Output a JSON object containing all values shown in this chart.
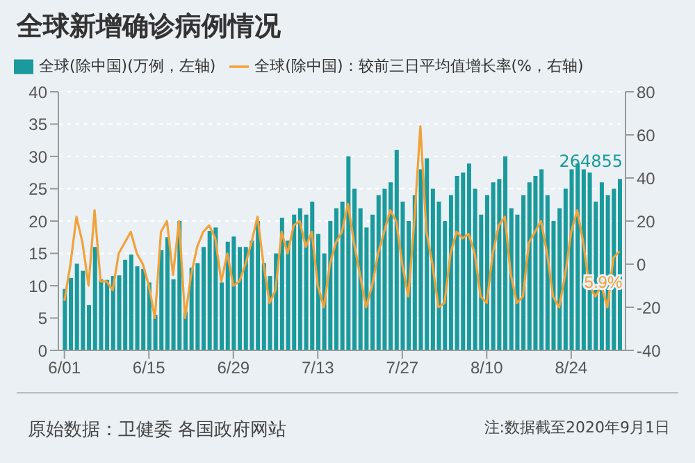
{
  "chart_data": {
    "type": "bar",
    "title": "全球新增确诊病例情况",
    "x": [
      "--06-01",
      "--06-02",
      "--06-03",
      "--06-04",
      "--06-05",
      "--06-06",
      "--06-07",
      "--06-08",
      "--06-09",
      "--06-10",
      "--06-11",
      "--06-12",
      "--06-13",
      "--06-14",
      "--06-15",
      "--06-16",
      "--06-17",
      "--06-18",
      "--06-19",
      "--06-20",
      "--06-21",
      "--06-22",
      "--06-23",
      "--06-24",
      "--06-25",
      "--06-26",
      "--06-27",
      "--06-28",
      "--06-29",
      "--06-30",
      "--07-01",
      "--07-02",
      "--07-03",
      "--07-04",
      "--07-05",
      "--07-06",
      "--07-07",
      "--07-08",
      "--07-09",
      "--07-10",
      "--07-11",
      "--07-12",
      "--07-13",
      "--07-14",
      "--07-15",
      "--07-16",
      "--07-17",
      "--07-18",
      "--07-19",
      "--07-20",
      "--07-21",
      "--07-22",
      "--07-23",
      "--07-24",
      "--07-25",
      "--07-26",
      "--07-27",
      "--07-28",
      "--07-29",
      "--07-30",
      "--07-31",
      "--08-01",
      "--08-02",
      "--08-03",
      "--08-04",
      "--08-05",
      "--08-06",
      "--08-07",
      "--08-08",
      "--08-09",
      "--08-10",
      "--08-11",
      "--08-12",
      "--08-13",
      "--08-14",
      "--08-15",
      "--08-16",
      "--08-17",
      "--08-18",
      "--08-19",
      "--08-20",
      "--08-21",
      "--08-22",
      "--08-23",
      "--08-24",
      "--08-25",
      "--08-26",
      "--08-27",
      "--08-28",
      "--08-29",
      "--08-30",
      "--08-31",
      "--09-01"
    ],
    "series": [
      {
        "name": "全球(除中国)(万例，左轴)",
        "color": "#1a9a9c",
        "values": [
          9.5,
          11.2,
          13.4,
          12.3,
          7,
          16,
          11,
          10.9,
          11.5,
          11.6,
          14,
          14.8,
          13,
          12.6,
          10.5,
          5.5,
          15.5,
          17.5,
          11,
          20,
          6,
          12.8,
          13.5,
          16,
          18.5,
          19,
          10.5,
          16.8,
          17.6,
          16,
          16,
          17,
          20,
          13.5,
          11.5,
          15,
          20.5,
          17,
          21,
          22,
          21,
          23,
          18,
          15,
          20,
          22,
          23,
          30,
          25,
          22,
          19,
          21,
          24,
          25,
          26,
          31,
          23,
          20,
          24,
          28,
          29.7,
          25,
          23,
          20,
          24,
          27,
          27.5,
          28.9,
          25,
          21,
          24,
          26,
          26.5,
          30,
          22,
          21,
          24,
          26,
          27,
          28,
          24,
          20,
          22,
          25,
          28,
          28.9,
          28,
          27.5,
          23,
          26,
          24,
          25,
          26.5
        ]
      },
      {
        "name": "全球(除中国)：较前三日平均值增长率(%，右轴)",
        "type": "line",
        "axis": "y2",
        "color": "#f0a23a",
        "values": [
          -17,
          0,
          22,
          10,
          -10,
          25,
          -8,
          -8,
          -12,
          5,
          10,
          15,
          5,
          0,
          -10,
          -25,
          15,
          20,
          -5,
          20,
          -25,
          -5,
          8,
          15,
          18,
          12,
          -8,
          5,
          -10,
          -8,
          0,
          10,
          22,
          0,
          -18,
          -12,
          15,
          5,
          18,
          20,
          8,
          15,
          -10,
          -20,
          0,
          10,
          15,
          28,
          10,
          -5,
          -20,
          -10,
          5,
          15,
          25,
          20,
          0,
          -15,
          20,
          64,
          15,
          0,
          -20,
          -18,
          5,
          15,
          12,
          14,
          5,
          -15,
          -18,
          5,
          18,
          22,
          -5,
          -18,
          -15,
          10,
          15,
          20,
          5,
          -15,
          -20,
          -5,
          15,
          25,
          10,
          -10,
          -15,
          -10,
          -20,
          3,
          5.9
        ],
        "value_labels": [
          null,
          null,
          null,
          null,
          null,
          null,
          null,
          null,
          null,
          null,
          null,
          null,
          null,
          null,
          null,
          null,
          null,
          null,
          null,
          null,
          null,
          null,
          null,
          null,
          null,
          null,
          null,
          null,
          null,
          null,
          null,
          null,
          null,
          null,
          null,
          null,
          null,
          null,
          null,
          null,
          null,
          null,
          null,
          null,
          null,
          null,
          null,
          null,
          null,
          null,
          null,
          null,
          null,
          null,
          null,
          null,
          null,
          null,
          null,
          null,
          null,
          null,
          null,
          null,
          null,
          null,
          null,
          null,
          null,
          null,
          null,
          null,
          null,
          null,
          null,
          null,
          null,
          null,
          null,
          null,
          null,
          null,
          null,
          null,
          null,
          null,
          null,
          null,
          null,
          null,
          null,
          null,
          "5.9%"
        ]
      }
    ],
    "xlim": [
      "--05-31",
      "--09-02"
    ],
    "xticks": [
      {
        "value": "--06-01",
        "label": "6/01"
      },
      {
        "value": "--06-15",
        "label": "6/15"
      },
      {
        "value": "--06-29",
        "label": "6/29"
      },
      {
        "value": "--07-13",
        "label": "7/13"
      },
      {
        "value": "--07-27",
        "label": "7/27"
      },
      {
        "value": "--08-10",
        "label": "8/10"
      },
      {
        "value": "--08-24",
        "label": "8/24"
      }
    ],
    "ylim": [
      0,
      40
    ],
    "yticks": [
      0,
      5,
      10,
      15,
      20,
      25,
      30,
      35,
      40
    ],
    "y2lim": [
      -40,
      80
    ],
    "y2ticks": [
      -40,
      -20,
      0,
      20,
      40,
      60,
      80
    ],
    "grid": "y",
    "legend": "top",
    "marker": "none",
    "line_style": "solid",
    "annotations": [
      "264855",
      "原始数据：卫健委 各国政府网站",
      "注:数据截至2020年9月1日"
    ]
  }
}
